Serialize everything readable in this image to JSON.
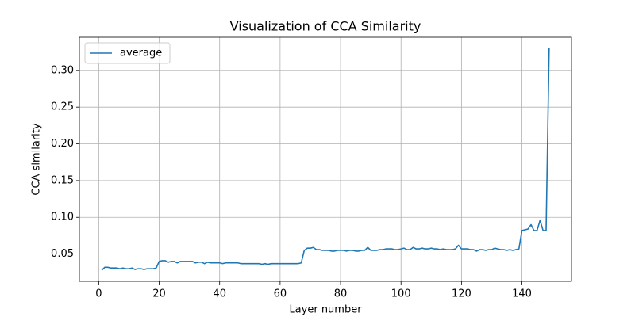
{
  "chart_data": {
    "type": "line",
    "title": "Visualization of CCA Similarity",
    "xlabel": "Layer number",
    "ylabel": "CCA similarity",
    "x": [
      1,
      2,
      3,
      4,
      5,
      6,
      7,
      8,
      9,
      10,
      11,
      12,
      13,
      14,
      15,
      16,
      17,
      18,
      19,
      20,
      21,
      22,
      23,
      24,
      25,
      26,
      27,
      28,
      29,
      30,
      31,
      32,
      33,
      34,
      35,
      36,
      37,
      38,
      39,
      40,
      41,
      42,
      43,
      44,
      45,
      46,
      47,
      48,
      49,
      50,
      51,
      52,
      53,
      54,
      55,
      56,
      57,
      58,
      59,
      60,
      61,
      62,
      63,
      64,
      65,
      66,
      67,
      68,
      69,
      70,
      71,
      72,
      73,
      74,
      75,
      76,
      77,
      78,
      79,
      80,
      81,
      82,
      83,
      84,
      85,
      86,
      87,
      88,
      89,
      90,
      91,
      92,
      93,
      94,
      95,
      96,
      97,
      98,
      99,
      100,
      101,
      102,
      103,
      104,
      105,
      106,
      107,
      108,
      109,
      110,
      111,
      112,
      113,
      114,
      115,
      116,
      117,
      118,
      119,
      120,
      121,
      122,
      123,
      124,
      125,
      126,
      127,
      128,
      129,
      130,
      131,
      132,
      133,
      134,
      135,
      136,
      137,
      138,
      139,
      140,
      141,
      142,
      143,
      144,
      145,
      146,
      147,
      148,
      149
    ],
    "series": [
      {
        "name": "average",
        "color": "#1f77b4",
        "values": [
          0.028,
          0.032,
          0.032,
          0.031,
          0.031,
          0.031,
          0.03,
          0.031,
          0.03,
          0.03,
          0.031,
          0.029,
          0.03,
          0.03,
          0.029,
          0.03,
          0.03,
          0.03,
          0.031,
          0.04,
          0.041,
          0.041,
          0.039,
          0.04,
          0.04,
          0.038,
          0.04,
          0.04,
          0.04,
          0.04,
          0.04,
          0.038,
          0.039,
          0.039,
          0.037,
          0.039,
          0.038,
          0.038,
          0.038,
          0.038,
          0.037,
          0.038,
          0.038,
          0.038,
          0.038,
          0.038,
          0.037,
          0.037,
          0.037,
          0.037,
          0.037,
          0.037,
          0.037,
          0.036,
          0.037,
          0.036,
          0.037,
          0.037,
          0.037,
          0.037,
          0.037,
          0.037,
          0.037,
          0.037,
          0.037,
          0.037,
          0.038,
          0.055,
          0.058,
          0.058,
          0.059,
          0.056,
          0.056,
          0.055,
          0.055,
          0.055,
          0.054,
          0.054,
          0.055,
          0.055,
          0.055,
          0.054,
          0.055,
          0.055,
          0.054,
          0.054,
          0.055,
          0.055,
          0.059,
          0.055,
          0.055,
          0.055,
          0.056,
          0.056,
          0.057,
          0.057,
          0.057,
          0.056,
          0.056,
          0.057,
          0.058,
          0.056,
          0.056,
          0.059,
          0.057,
          0.057,
          0.058,
          0.057,
          0.057,
          0.058,
          0.057,
          0.057,
          0.056,
          0.057,
          0.056,
          0.056,
          0.056,
          0.057,
          0.062,
          0.057,
          0.057,
          0.057,
          0.056,
          0.056,
          0.054,
          0.056,
          0.056,
          0.055,
          0.056,
          0.056,
          0.058,
          0.057,
          0.056,
          0.056,
          0.055,
          0.056,
          0.055,
          0.056,
          0.057,
          0.082,
          0.083,
          0.084,
          0.09,
          0.082,
          0.082,
          0.096,
          0.082,
          0.082,
          0.33
        ]
      }
    ],
    "xlim": [
      -6.4,
      156.4
    ],
    "xticks": [
      0,
      20,
      40,
      60,
      80,
      100,
      120,
      140
    ],
    "ylim": [
      0.0129,
      0.3451
    ],
    "yticks": [
      0.05,
      {
        "value": 0.1,
        "label": "0.10"
      },
      0.15,
      {
        "value": 0.2,
        "label": "0.20"
      },
      0.25,
      {
        "value": 0.3,
        "label": "0.30"
      }
    ],
    "grid": true,
    "legend": "upper-left"
  }
}
